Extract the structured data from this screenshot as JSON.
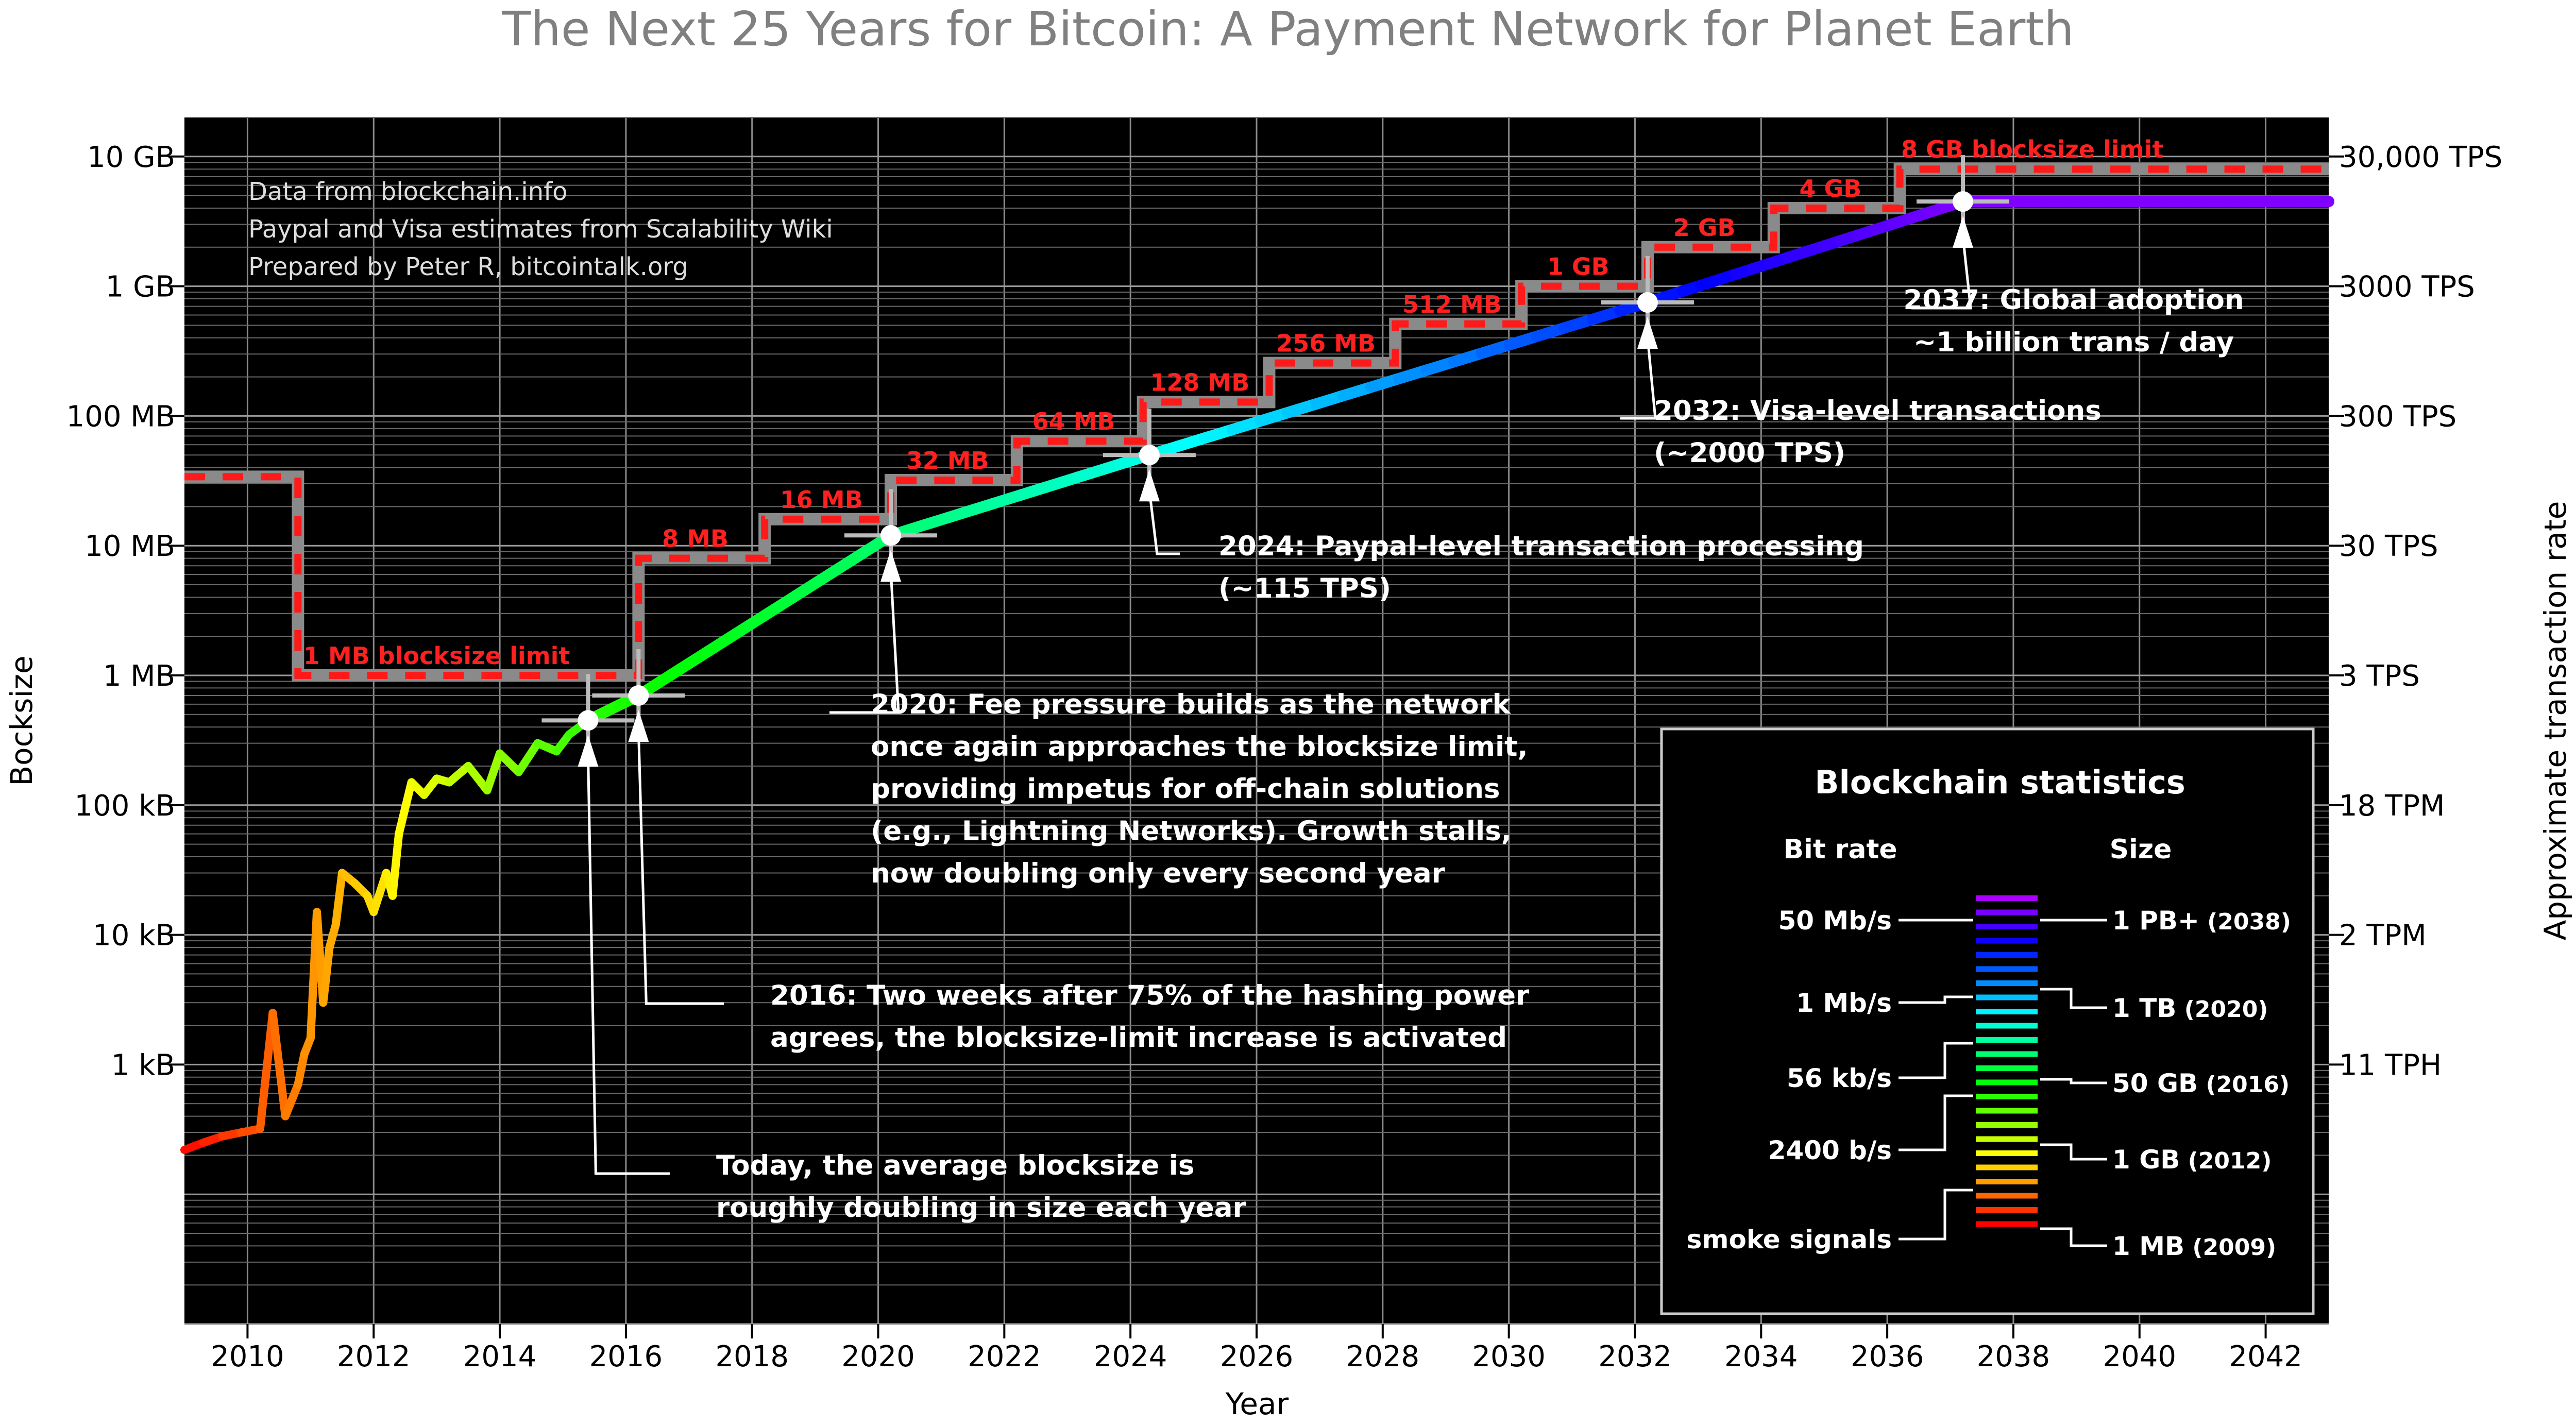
{
  "chart_data": {
    "type": "line",
    "title": "The Next 25 Years for Bitcoin: A Payment Network for Planet Earth",
    "xlabel": "Year",
    "ylabel": "Bocksize",
    "y2label": "Approximate transaction rate",
    "xlim": [
      2009,
      2043
    ],
    "x_ticks": [
      2010,
      2012,
      2014,
      2016,
      2018,
      2020,
      2022,
      2024,
      2026,
      2028,
      2030,
      2032,
      2034,
      2036,
      2038,
      2040,
      2042
    ],
    "y_scale": "log",
    "ylim_bytes": [
      10,
      20000000000
    ],
    "y_ticks": [
      {
        "value": 1000,
        "label": "1 kB"
      },
      {
        "value": 10000,
        "label": "10 kB"
      },
      {
        "value": 100000,
        "label": "100 kB"
      },
      {
        "value": 1000000,
        "label": "1 MB"
      },
      {
        "value": 10000000,
        "label": "10 MB"
      },
      {
        "value": 100000000,
        "label": "100 MB"
      },
      {
        "value": 1000000000,
        "label": "1 GB"
      },
      {
        "value": 10000000000,
        "label": "10 GB"
      }
    ],
    "y2_ticks": [
      {
        "value": 1000,
        "label": "11 TPH"
      },
      {
        "value": 10000,
        "label": "2 TPM"
      },
      {
        "value": 100000,
        "label": "18 TPM"
      },
      {
        "value": 1000000,
        "label": "3 TPS"
      },
      {
        "value": 10000000,
        "label": "30 TPS"
      },
      {
        "value": 100000000,
        "label": "300 TPS"
      },
      {
        "value": 1000000000,
        "label": "3000 TPS"
      },
      {
        "value": 10000000000,
        "label": "30,000 TPS"
      }
    ],
    "grid": true,
    "background": "#000000",
    "notes": [
      "Data from blockchain.info",
      "Paypal and Visa estimates from Scalability Wiki",
      "Prepared by Peter R, bitcointalk.org"
    ],
    "series": [
      {
        "kind": "historical average blocksize",
        "x": [
          2009.0,
          2009.3,
          2009.6,
          2009.9,
          2010.2,
          2010.4,
          2010.6,
          2010.8,
          2010.9,
          2011.0,
          2011.1,
          2011.2,
          2011.3,
          2011.4,
          2011.5,
          2011.7,
          2011.9,
          2012.0,
          2012.2,
          2012.3,
          2012.4,
          2012.6,
          2012.8,
          2013.0,
          2013.2,
          2013.5,
          2013.8,
          2014.0,
          2014.3,
          2014.6,
          2014.9,
          2015.1,
          2015.4
        ],
        "y_bytes": [
          220,
          250,
          280,
          300,
          320,
          2500,
          400,
          700,
          1200,
          1600,
          15000,
          3000,
          8000,
          12000,
          30000,
          25000,
          20000,
          15000,
          30000,
          20000,
          60000,
          150000,
          120000,
          160000,
          150000,
          200000,
          130000,
          250000,
          180000,
          300000,
          260000,
          350000,
          450000
        ]
      },
      {
        "kind": "projected blocksize",
        "x": [
          2015.4,
          2016.2,
          2020.2,
          2024.3,
          2032.2,
          2037.2,
          2043.0
        ],
        "y_bytes": [
          450000,
          700000,
          12000000,
          50000000,
          750000000,
          4500000000,
          4500000000
        ]
      },
      {
        "kind": "blocksize limit",
        "steps": [
          {
            "x_start": 2009.0,
            "x_end": 2010.8,
            "y_bytes": 34000000
          },
          {
            "x_start": 2010.8,
            "x_end": 2016.2,
            "y_bytes": 1000000
          },
          {
            "x_start": 2016.2,
            "x_end": 2018.2,
            "y_bytes": 8000000
          },
          {
            "x_start": 2018.2,
            "x_end": 2020.2,
            "y_bytes": 16000000
          },
          {
            "x_start": 2020.2,
            "x_end": 2022.2,
            "y_bytes": 32000000
          },
          {
            "x_start": 2022.2,
            "x_end": 2024.2,
            "y_bytes": 64000000
          },
          {
            "x_start": 2024.2,
            "x_end": 2026.2,
            "y_bytes": 128000000
          },
          {
            "x_start": 2026.2,
            "x_end": 2028.2,
            "y_bytes": 256000000
          },
          {
            "x_start": 2028.2,
            "x_end": 2030.2,
            "y_bytes": 512000000
          },
          {
            "x_start": 2030.2,
            "x_end": 2032.2,
            "y_bytes": 1000000000
          },
          {
            "x_start": 2032.2,
            "x_end": 2034.2,
            "y_bytes": 2000000000
          },
          {
            "x_start": 2034.2,
            "x_end": 2036.2,
            "y_bytes": 4000000000
          },
          {
            "x_start": 2036.2,
            "x_end": 2043.0,
            "y_bytes": 8000000000
          }
        ]
      }
    ],
    "limit_labels": [
      {
        "text": "1 MB blocksize limit",
        "x": 2013.0,
        "y_bytes": 1000000
      },
      {
        "text": "8 MB",
        "x": 2017.1,
        "y_bytes": 8000000
      },
      {
        "text": "16 MB",
        "x": 2019.1,
        "y_bytes": 16000000
      },
      {
        "text": "32 MB",
        "x": 2021.1,
        "y_bytes": 32000000
      },
      {
        "text": "64 MB",
        "x": 2023.1,
        "y_bytes": 64000000
      },
      {
        "text": "128 MB",
        "x": 2025.1,
        "y_bytes": 128000000
      },
      {
        "text": "256 MB",
        "x": 2027.1,
        "y_bytes": 256000000
      },
      {
        "text": "512 MB",
        "x": 2029.1,
        "y_bytes": 512000000
      },
      {
        "text": "1 GB",
        "x": 2031.1,
        "y_bytes": 1000000000
      },
      {
        "text": "2 GB",
        "x": 2033.1,
        "y_bytes": 2000000000
      },
      {
        "text": "4 GB",
        "x": 2035.1,
        "y_bytes": 4000000000
      },
      {
        "text": "8 GB blocksize limit",
        "x": 2038.3,
        "y_bytes": 8000000000
      }
    ],
    "milestones": [
      {
        "x": 2015.4,
        "y_bytes": 450000,
        "lines": [
          "Today, the average blocksize is",
          "roughly doubling in size each year"
        ]
      },
      {
        "x": 2016.2,
        "y_bytes": 700000,
        "lines": [
          "2016: Two weeks after 75% of the hashing power",
          "agrees, the blocksize-limit increase is activated"
        ]
      },
      {
        "x": 2020.2,
        "y_bytes": 12000000,
        "lines": [
          "2020: Fee pressure builds as the network",
          "once again approaches the blocksize limit,",
          "providing impetus for off-chain solutions",
          "(e.g., Lightning Networks). Growth stalls,",
          "now doubling only every second year"
        ]
      },
      {
        "x": 2024.3,
        "y_bytes": 50000000,
        "lines": [
          "2024: Paypal-level transaction processing",
          "(~115 TPS)"
        ]
      },
      {
        "x": 2032.2,
        "y_bytes": 750000000,
        "lines": [
          "2032: Visa-level transactions",
          "(~2000 TPS)"
        ]
      },
      {
        "x": 2037.2,
        "y_bytes": 4500000000,
        "lines": [
          "2037: Global adoption",
          "~1 billion trans / day"
        ]
      }
    ],
    "blockchain_statistics": {
      "title": "Blockchain statistics",
      "left_header": "Bit rate",
      "right_header": "Size",
      "bit_rates": [
        "50 Mb/s",
        "1 Mb/s",
        "56 kb/s",
        "2400 b/s",
        "smoke signals"
      ],
      "sizes": [
        {
          "size": "1 PB+",
          "year": "(2038)"
        },
        {
          "size": "1 TB",
          "year": "(2020)"
        },
        {
          "size": "50 GB",
          "year": "(2016)"
        },
        {
          "size": "1 GB",
          "year": "(2012)"
        },
        {
          "size": "1 MB",
          "year": "(2009)"
        }
      ]
    }
  }
}
